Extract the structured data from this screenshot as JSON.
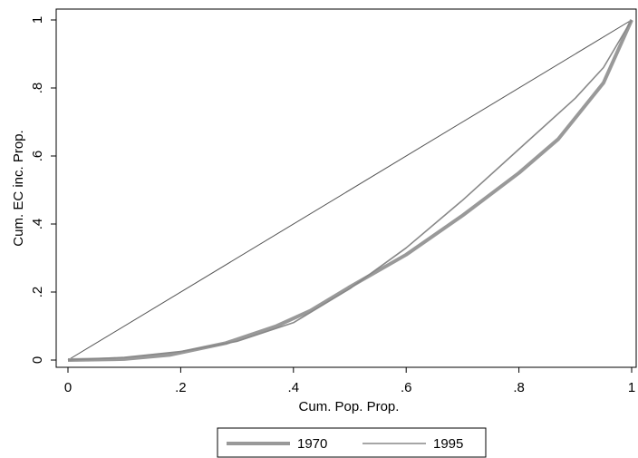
{
  "chart_data": {
    "type": "line",
    "title": "",
    "xlabel": "Cum. Pop. Prop.",
    "ylabel": "Cum. EC inc. Prop.",
    "xlim": [
      0,
      1
    ],
    "ylim": [
      0,
      1
    ],
    "x_ticks": [
      0,
      0.2,
      0.4,
      0.6,
      0.8,
      1
    ],
    "x_tick_labels": [
      "0",
      ".2",
      ".4",
      ".6",
      ".8",
      "1"
    ],
    "y_ticks": [
      0,
      0.2,
      0.4,
      0.6,
      0.8,
      1
    ],
    "y_tick_labels": [
      "0",
      ".2",
      ".4",
      ".6",
      ".8",
      "1"
    ],
    "grid": false,
    "legend_position": "bottom",
    "equality_line": [
      [
        0,
        0
      ],
      [
        1,
        1
      ]
    ],
    "series": [
      {
        "name": "1970",
        "color": "#999999",
        "x": [
          0,
          0.1,
          0.18,
          0.28,
          0.37,
          0.43,
          0.5,
          0.6,
          0.7,
          0.8,
          0.87,
          0.95,
          1
        ],
        "y": [
          0,
          0.003,
          0.015,
          0.05,
          0.1,
          0.145,
          0.215,
          0.31,
          0.425,
          0.55,
          0.65,
          0.815,
          1
        ]
      },
      {
        "name": "1995",
        "color": "#888888",
        "x": [
          0,
          0.1,
          0.2,
          0.3,
          0.4,
          0.5,
          0.6,
          0.7,
          0.8,
          0.9,
          0.95,
          1
        ],
        "y": [
          0,
          0.008,
          0.025,
          0.055,
          0.11,
          0.21,
          0.33,
          0.47,
          0.62,
          0.77,
          0.86,
          1
        ]
      }
    ]
  }
}
